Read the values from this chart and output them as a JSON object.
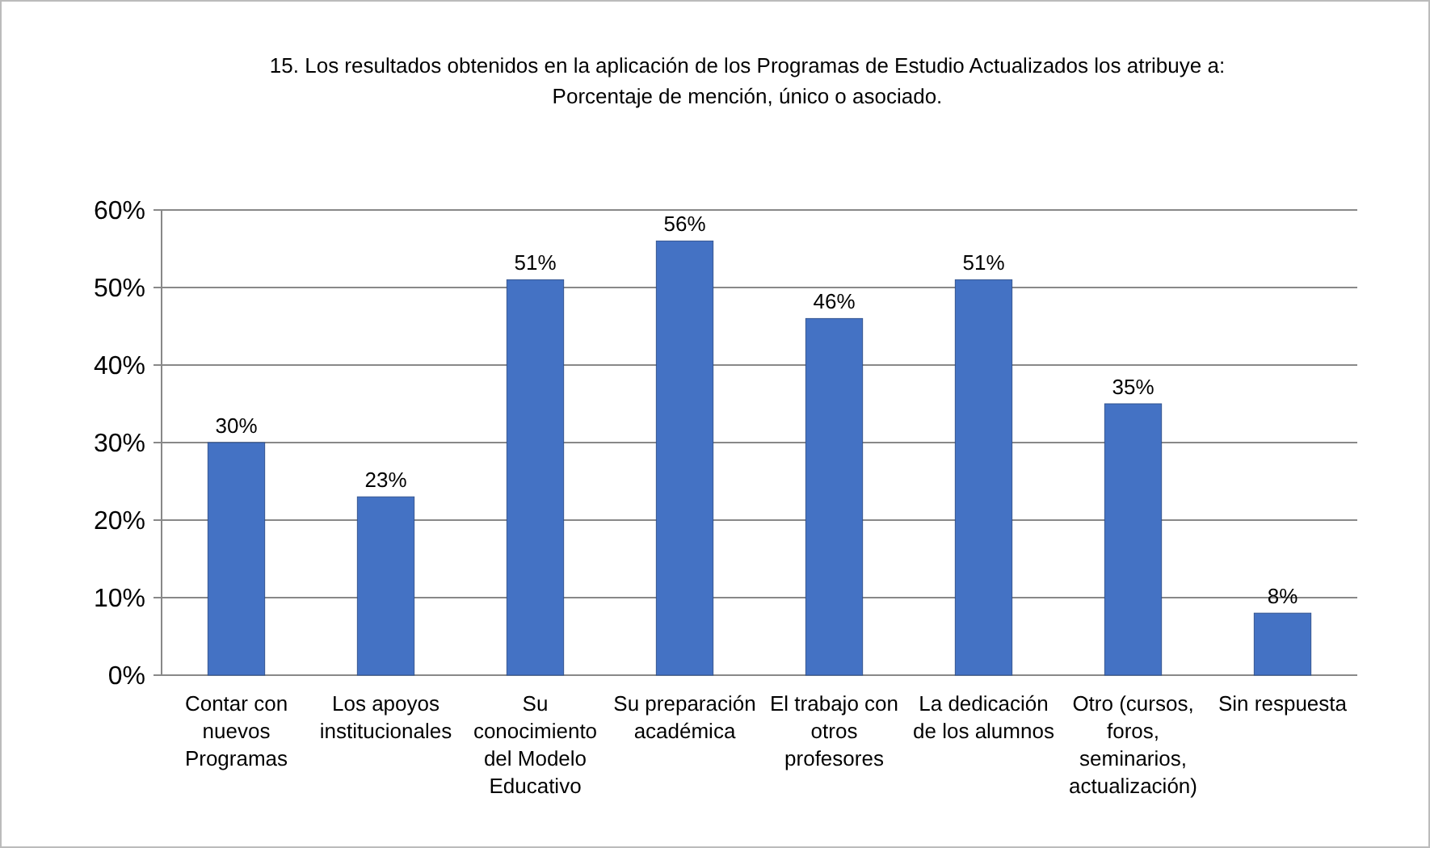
{
  "chart_data": {
    "type": "bar",
    "title": "15. Los resultados obtenidos en la aplicación de los Programas de Estudio Actualizados los atribuye a:",
    "subtitle": "Porcentaje de mención, único o asociado.",
    "categories": [
      "Contar con nuevos Programas",
      "Los apoyos institucionales",
      "Su conocimiento del Modelo Educativo",
      "Su preparación académica",
      "El trabajo con otros profesores",
      "La dedicación de los alumnos",
      "Otro (cursos, foros, seminarios, actualización)",
      "Sin respuesta"
    ],
    "values": [
      30,
      23,
      51,
      56,
      46,
      51,
      35,
      8
    ],
    "value_labels": [
      "30%",
      "23%",
      "51%",
      "56%",
      "46%",
      "51%",
      "35%",
      "8%"
    ],
    "color": "#4472c4",
    "ylim": [
      0,
      60
    ],
    "yticks": [
      {
        "value": 0,
        "label": "0%"
      },
      {
        "value": 10,
        "label": "10%"
      },
      {
        "value": 20,
        "label": "20%"
      },
      {
        "value": 30,
        "label": "30%"
      },
      {
        "value": 40,
        "label": "40%"
      },
      {
        "value": 50,
        "label": "50%"
      },
      {
        "value": 60,
        "label": "60%"
      }
    ],
    "grid": "y"
  }
}
